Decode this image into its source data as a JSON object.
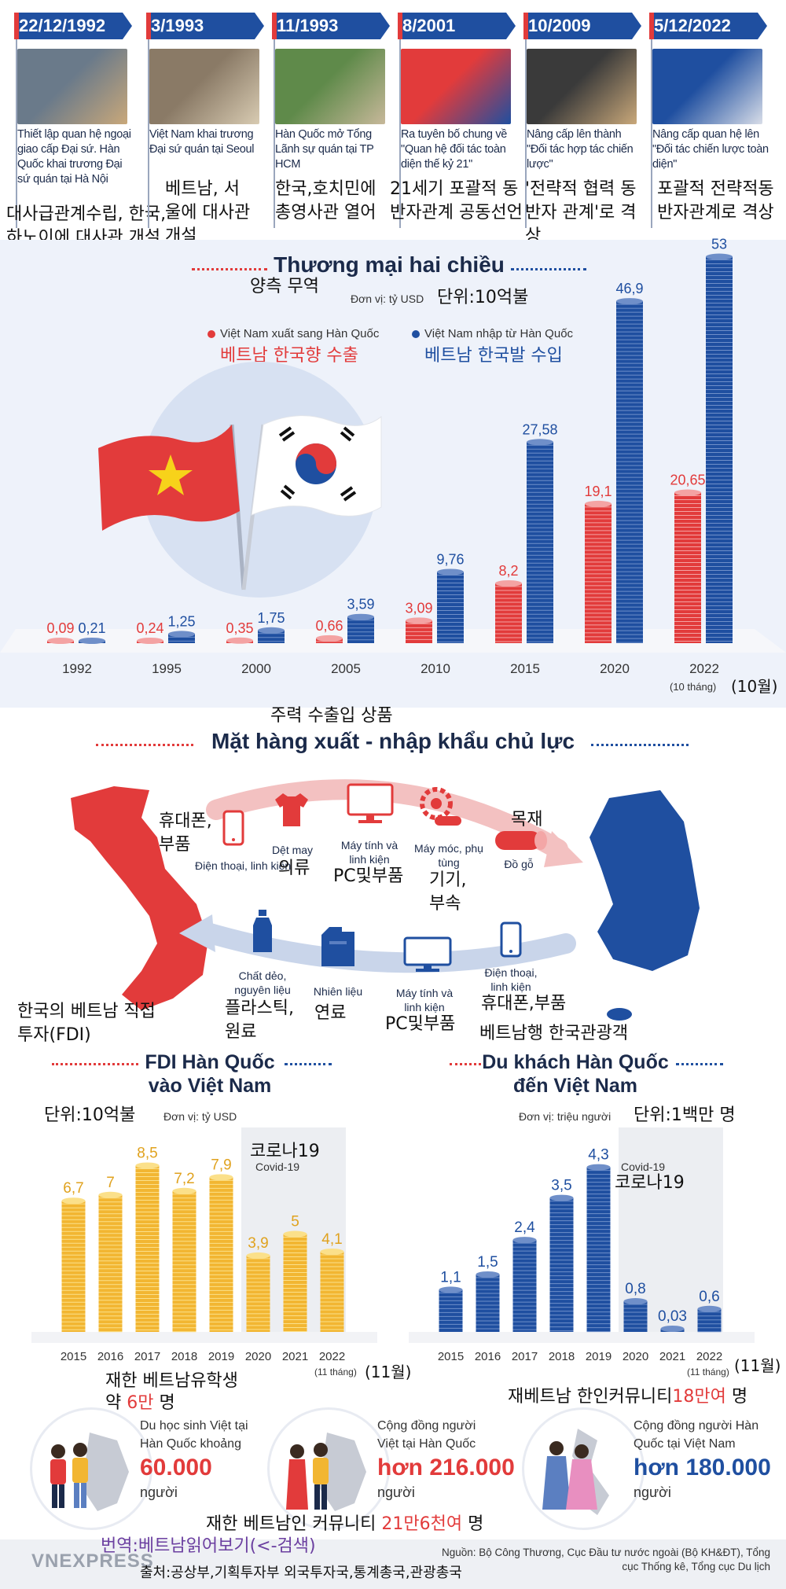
{
  "timeline": [
    {
      "date": "22/12/1992",
      "text": "Thiết lập quan hệ ngoại giao cấp Đại sứ. Hàn Quốc khai trương Đại sứ quán tại Hà Nội",
      "ko": "대사급관계수립, 한국,하노이에 대사관 개설"
    },
    {
      "date": "3/1993",
      "text": "Việt Nam khai trương Đại sứ quán tại Seoul",
      "ko": "베트남, 서울에 대사관개설"
    },
    {
      "date": "11/1993",
      "text": "Hàn Quốc mở Tổng Lãnh sự quán tại TP HCM",
      "ko": "한국,호치민에 총영사관 열어"
    },
    {
      "date": "8/2001",
      "text": "Ra tuyên bố chung về \"Quan hệ đối tác toàn diện thế kỷ 21\"",
      "ko": "21세기 포괄적 동반자관계 공동선언"
    },
    {
      "date": "10/2009",
      "text": "Nâng cấp lên thành \"Đối tác hợp tác chiến lược\"",
      "ko": "'전략적 협력 동반자 관계'로 격상"
    },
    {
      "date": "5/12/2022",
      "text": "Nâng cấp quan hệ lên \"Đối tác chiến lược toàn diện\"",
      "ko": "포괄적 전략적동반자관계로 격상"
    }
  ],
  "trade": {
    "title": "Thương mại hai chiều",
    "title_ko": "양측 무역",
    "unit": "Đơn vị: tỷ USD",
    "unit_ko": "단위:10억불",
    "legend_export": "Việt Nam xuất sang Hàn Quốc",
    "legend_export_ko": "베트남 한국향 수출",
    "legend_import": "Việt Nam nhập từ Hàn Quốc",
    "legend_import_ko": "베트남 한국발 수입",
    "note": "(10 tháng)",
    "note_ko": "(10월)"
  },
  "products": {
    "title_ko": "주력 수출입 상품",
    "title": "Mặt hàng xuất - nhập khẩu chủ lực",
    "export_items": [
      {
        "label": "Điện thoại, linh kiện",
        "ko": "휴대폰, 부품",
        "icon": "phone-icon"
      },
      {
        "label": "Dệt may",
        "ko": "의류",
        "icon": "shirt-icon"
      },
      {
        "label": "Máy tính và linh kiện",
        "ko": "PC및부품",
        "icon": "computer-icon"
      },
      {
        "label": "Máy móc, phụ tùng",
        "ko": "기기, 부속",
        "icon": "machine-icon"
      },
      {
        "label": "Đồ gỗ",
        "ko": "목재",
        "icon": "wood-icon"
      }
    ],
    "import_items": [
      {
        "label": "Chất dẻo, nguyên liệu",
        "ko": "플라스틱, 원료",
        "icon": "plastic-icon"
      },
      {
        "label": "Nhiên liệu",
        "ko": "연료",
        "icon": "fuel-icon"
      },
      {
        "label": "Máy tính và linh kiện",
        "ko": "PC및부품",
        "icon": "computer-icon"
      },
      {
        "label": "Điện thoại, linh kiện",
        "ko": "휴대폰,부품",
        "icon": "phone-icon"
      }
    ]
  },
  "fdi": {
    "title_ko": "한국의 베트남 직접투자(FDI)",
    "title": "FDI Hàn Quốc vào Việt Nam",
    "unit": "Đơn vị: tỷ USD",
    "unit_ko": "단위:10억불",
    "covid": "Covid-19",
    "covid_ko": "코로나19",
    "note": "(11 tháng)",
    "note_ko": "(11월)"
  },
  "tourist": {
    "title_ko": "베트남행 한국관광객",
    "title": "Du khách Hàn Quốc đến Việt Nam",
    "unit": "Đơn vị: triệu người",
    "unit_ko": "단위:1백만 명",
    "covid": "Covid-19",
    "covid_ko": "코로나19",
    "note": "(11 tháng)",
    "note_ko": "(11월)"
  },
  "community": {
    "students_ko_a": "재한 베트남유학생",
    "students_ko_b": "약",
    "students_ko_num": "6만",
    "students_ko_c": "명",
    "students_label": "Du học sinh Việt tại Hàn Quốc khoảng",
    "students_num": "60.000",
    "students_unit": "người",
    "vn_in_kr_label": "Cộng đồng người Việt tại Hàn Quốc",
    "vn_in_kr_num": "hơn 216.000",
    "vn_in_kr_unit": "người",
    "vn_in_kr_ko_a": "재한 베트남인 커뮤니티",
    "vn_in_kr_ko_num": "21만6천여",
    "vn_in_kr_ko_b": "명",
    "kr_in_vn_ko_a": "재베트남 한인커뮤니티",
    "kr_in_vn_ko_num": "18만여",
    "kr_in_vn_ko_b": "명",
    "kr_in_vn_label": "Cộng đồng người Hàn Quốc tại Việt Nam",
    "kr_in_vn_num": "hơn 180.000",
    "kr_in_vn_unit": "người"
  },
  "footer": {
    "logo": "VNEXPRESS",
    "translation": "번역:베트남읽어보기(<-검색)",
    "source_vi": "Nguồn: Bộ Công Thương, Cục Đầu tư nước ngoài (Bộ KH&ĐT), Tổng cục Thống kê, Tổng cục Du lịch",
    "source_ko": "출처:공상부,기획투자부 외국투자국,통계총국,관광총국"
  },
  "colors": {
    "red": "#e23b3b",
    "blue": "#1f4fa0",
    "gold": "#f2b632",
    "navy": "#1b2a4a"
  },
  "chart_data": [
    {
      "type": "bar",
      "title": "Thương mại hai chiều",
      "ylabel": "Đơn vị: tỷ USD",
      "categories": [
        "1992",
        "1995",
        "2000",
        "2005",
        "2010",
        "2015",
        "2020",
        "2022"
      ],
      "series": [
        {
          "name": "Việt Nam xuất sang Hàn Quốc",
          "values": [
            0.09,
            0.24,
            0.35,
            0.66,
            3.09,
            8.2,
            19.1,
            20.65
          ],
          "labels": [
            "0,09",
            "0,24",
            "0,35",
            "0,66",
            "3,09",
            "8,2",
            "19,1",
            "20,65"
          ]
        },
        {
          "name": "Việt Nam nhập từ Hàn Quốc",
          "values": [
            0.21,
            1.25,
            1.75,
            3.59,
            9.76,
            27.58,
            46.9,
            53
          ],
          "labels": [
            "0,21",
            "1,25",
            "1,75",
            "3,59",
            "9,76",
            "27,58",
            "46,9",
            "53"
          ]
        }
      ],
      "ylim": [
        0,
        55
      ]
    },
    {
      "type": "bar",
      "title": "FDI Hàn Quốc vào Việt Nam",
      "ylabel": "Đơn vị: tỷ USD",
      "categories": [
        "2015",
        "2016",
        "2017",
        "2018",
        "2019",
        "2020",
        "2021",
        "2022"
      ],
      "values": [
        6.7,
        7,
        8.5,
        7.2,
        7.9,
        3.9,
        5,
        4.1
      ],
      "labels": [
        "6,7",
        "7",
        "8,5",
        "7,2",
        "7,9",
        "3,9",
        "5",
        "4,1"
      ],
      "ylim": [
        0,
        9
      ]
    },
    {
      "type": "bar",
      "title": "Du khách Hàn Quốc đến Việt Nam",
      "ylabel": "Đơn vị: triệu người",
      "categories": [
        "2015",
        "2016",
        "2017",
        "2018",
        "2019",
        "2020",
        "2021",
        "2022"
      ],
      "values": [
        1.1,
        1.5,
        2.4,
        3.5,
        4.3,
        0.8,
        0.03,
        0.6
      ],
      "labels": [
        "1,1",
        "1,5",
        "2,4",
        "3,5",
        "4,3",
        "0,8",
        "0,03",
        "0,6"
      ],
      "ylim": [
        0,
        4.6
      ]
    }
  ]
}
